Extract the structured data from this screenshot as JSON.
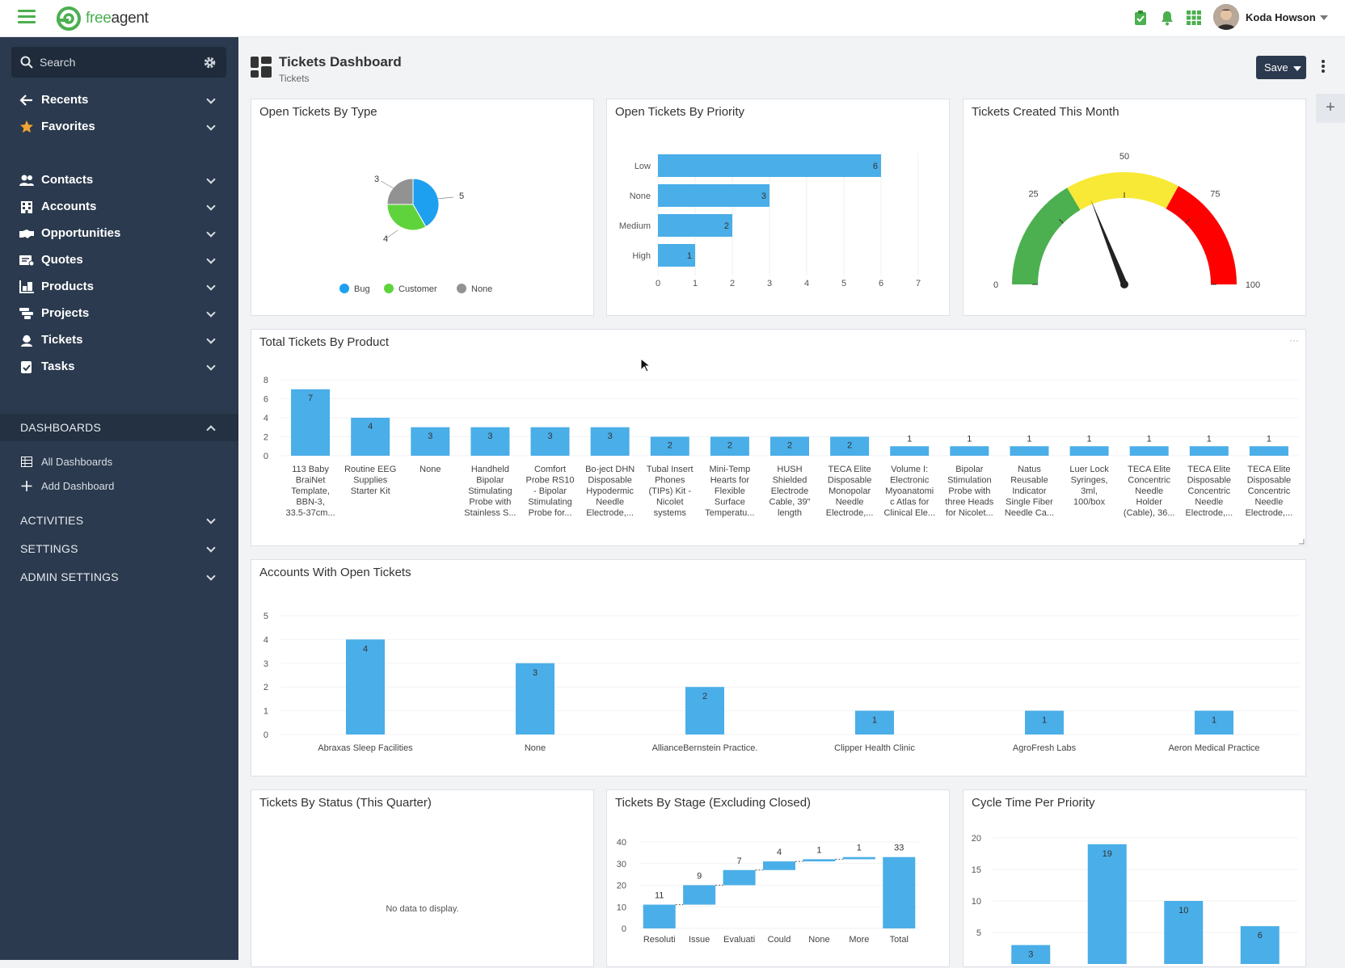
{
  "app": {
    "brand_prefix": "free",
    "brand_suffix": "agent",
    "user": "Koda Howson"
  },
  "colors": {
    "accent": "#4caf50",
    "sidebar": "#2b3a4e",
    "bar": "#4aaee8"
  },
  "icons": {
    "hamburger": "menu-icon",
    "clipboard": "clipboard-icon",
    "bell": "bell-icon",
    "apps": "apps-grid-icon"
  },
  "sidebar": {
    "search_placeholder": "Search",
    "top": [
      {
        "label": "Recents",
        "icon": "arrow-left-icon"
      },
      {
        "label": "Favorites",
        "icon": "star-icon"
      }
    ],
    "entities": [
      {
        "label": "Contacts",
        "icon": "contacts-icon"
      },
      {
        "label": "Accounts",
        "icon": "building-icon"
      },
      {
        "label": "Opportunities",
        "icon": "handshake-icon"
      },
      {
        "label": "Quotes",
        "icon": "quote-icon"
      },
      {
        "label": "Products",
        "icon": "products-icon"
      },
      {
        "label": "Projects",
        "icon": "projects-icon"
      },
      {
        "label": "Tickets",
        "icon": "ticket-icon"
      },
      {
        "label": "Tasks",
        "icon": "tasks-icon"
      }
    ],
    "dashboards_label": "DASHBOARDS",
    "dashboards_items": [
      {
        "label": "All Dashboards"
      },
      {
        "label": "Add Dashboard"
      }
    ],
    "sections": [
      {
        "label": "ACTIVITIES"
      },
      {
        "label": "SETTINGS"
      },
      {
        "label": "ADMIN SETTINGS"
      }
    ]
  },
  "header": {
    "title": "Tickets Dashboard",
    "subtitle": "Tickets",
    "save_label": "Save",
    "add": "+"
  },
  "widgets": {
    "type": {
      "title": "Open Tickets By Type"
    },
    "priority": {
      "title": "Open Tickets By Priority"
    },
    "created": {
      "title": "Tickets Created This Month"
    },
    "product": {
      "title": "Total Tickets By Product",
      "more": "···"
    },
    "accounts": {
      "title": "Accounts With Open Tickets"
    },
    "status": {
      "title": "Tickets By Status (This Quarter)",
      "empty": "No data to display."
    },
    "stage": {
      "title": "Tickets By Stage (Excluding Closed)"
    },
    "cycle": {
      "title": "Cycle Time Per Priority"
    }
  },
  "chart_data": [
    {
      "id": "type",
      "type": "pie",
      "title": "Open Tickets By Type",
      "series": [
        {
          "name": "Bug",
          "value": 5,
          "color": "#1ea0f0"
        },
        {
          "name": "Customer",
          "value": 4,
          "color": "#5fd33b"
        },
        {
          "name": "None",
          "value": 3,
          "color": "#929292"
        }
      ]
    },
    {
      "id": "priority",
      "type": "bar",
      "orientation": "horizontal",
      "title": "Open Tickets By Priority",
      "categories": [
        "Low",
        "None",
        "Medium",
        "High"
      ],
      "values": [
        6,
        3,
        2,
        1
      ],
      "xlim": [
        0,
        7
      ],
      "xticks": [
        0,
        1,
        2,
        3,
        4,
        5,
        6,
        7
      ]
    },
    {
      "id": "created",
      "type": "gauge",
      "title": "Tickets Created This Month",
      "range": [
        0,
        100
      ],
      "ticks": [
        0,
        25,
        50,
        75,
        100
      ],
      "value": 38,
      "bands": [
        {
          "from": 0,
          "to": 33,
          "color": "#4caf50"
        },
        {
          "from": 33,
          "to": 66,
          "color": "#f9e937"
        },
        {
          "from": 66,
          "to": 100,
          "color": "#ff0000"
        }
      ]
    },
    {
      "id": "product",
      "type": "bar",
      "title": "Total Tickets By Product",
      "categories": [
        [
          "113 Baby",
          "BraiNet",
          "Template,",
          "BBN-3,",
          "33.5-37cm..."
        ],
        [
          "Routine EEG",
          "Supplies",
          "Starter Kit"
        ],
        [
          "None"
        ],
        [
          "Handheld",
          "Bipolar",
          "Stimulating",
          "Probe with",
          "Stainless S..."
        ],
        [
          "Comfort",
          "Probe RS10",
          "- Bipolar",
          "Stimulating",
          "Probe for..."
        ],
        [
          "Bo-ject DHN",
          "Disposable",
          "Hypodermic",
          "Needle",
          "Electrode,..."
        ],
        [
          "Tubal Insert",
          "Phones",
          "(TIPs) Kit -",
          "Nicolet",
          "systems"
        ],
        [
          "Mini-Temp",
          "Hearts for",
          "Flexible",
          "Surface",
          "Temperatu..."
        ],
        [
          "HUSH",
          "Shielded",
          "Electrode",
          "Cable, 39\"",
          "length"
        ],
        [
          "TECA Elite",
          "Disposable",
          "Monopolar",
          "Needle",
          "Electrode,..."
        ],
        [
          "Volume I:",
          "Electronic",
          "Myoanatomi",
          "c Atlas for",
          "Clinical Ele..."
        ],
        [
          "Bipolar",
          "Stimulation",
          "Probe with",
          "three Heads",
          "for Nicolet..."
        ],
        [
          "Natus",
          "Reusable",
          "Indicator",
          "Single Fiber",
          "Needle Ca..."
        ],
        [
          "Luer Lock",
          "Syringes,",
          "3ml,",
          "100/box"
        ],
        [
          "TECA Elite",
          "Concentric",
          "Needle",
          "Holder",
          "(Cable), 36..."
        ],
        [
          "TECA Elite",
          "Disposable",
          "Concentric",
          "Needle",
          "Electrode,..."
        ],
        [
          "TECA Elite",
          "Disposable",
          "Concentric",
          "Needle",
          "Electrode,..."
        ]
      ],
      "values": [
        7,
        4,
        3,
        3,
        3,
        3,
        2,
        2,
        2,
        2,
        1,
        1,
        1,
        1,
        1,
        1,
        1
      ],
      "ylim": [
        0,
        8
      ],
      "yticks": [
        0,
        2,
        4,
        6,
        8
      ]
    },
    {
      "id": "accounts",
      "type": "bar",
      "title": "Accounts With Open Tickets",
      "categories": [
        "Abraxas Sleep Facilities",
        "None",
        "AllianceBernstein Practice.",
        "Clipper Health Clinic",
        "AgroFresh Labs",
        "Aeron Medical Practice"
      ],
      "values": [
        4,
        3,
        2,
        1,
        1,
        1
      ],
      "ylim": [
        0,
        5
      ],
      "yticks": [
        0,
        1,
        2,
        3,
        4,
        5
      ]
    },
    {
      "id": "stage",
      "type": "bar",
      "subtype": "waterfall",
      "title": "Tickets By Stage (Excluding Closed)",
      "categories": [
        "Resoluti",
        "Issue",
        "Evaluati",
        "Could",
        "None",
        "More",
        "Total"
      ],
      "values": [
        11,
        9,
        7,
        4,
        1,
        1,
        33
      ],
      "ylim": [
        0,
        40
      ],
      "yticks": [
        0,
        10,
        20,
        30,
        40
      ]
    },
    {
      "id": "cycle",
      "type": "bar",
      "title": "Cycle Time Per Priority",
      "categories": [
        "",
        "",
        "",
        ""
      ],
      "values": [
        3,
        19,
        10,
        6
      ],
      "ylim": [
        0,
        20
      ],
      "yticks": [
        5,
        10,
        15,
        20
      ]
    }
  ]
}
